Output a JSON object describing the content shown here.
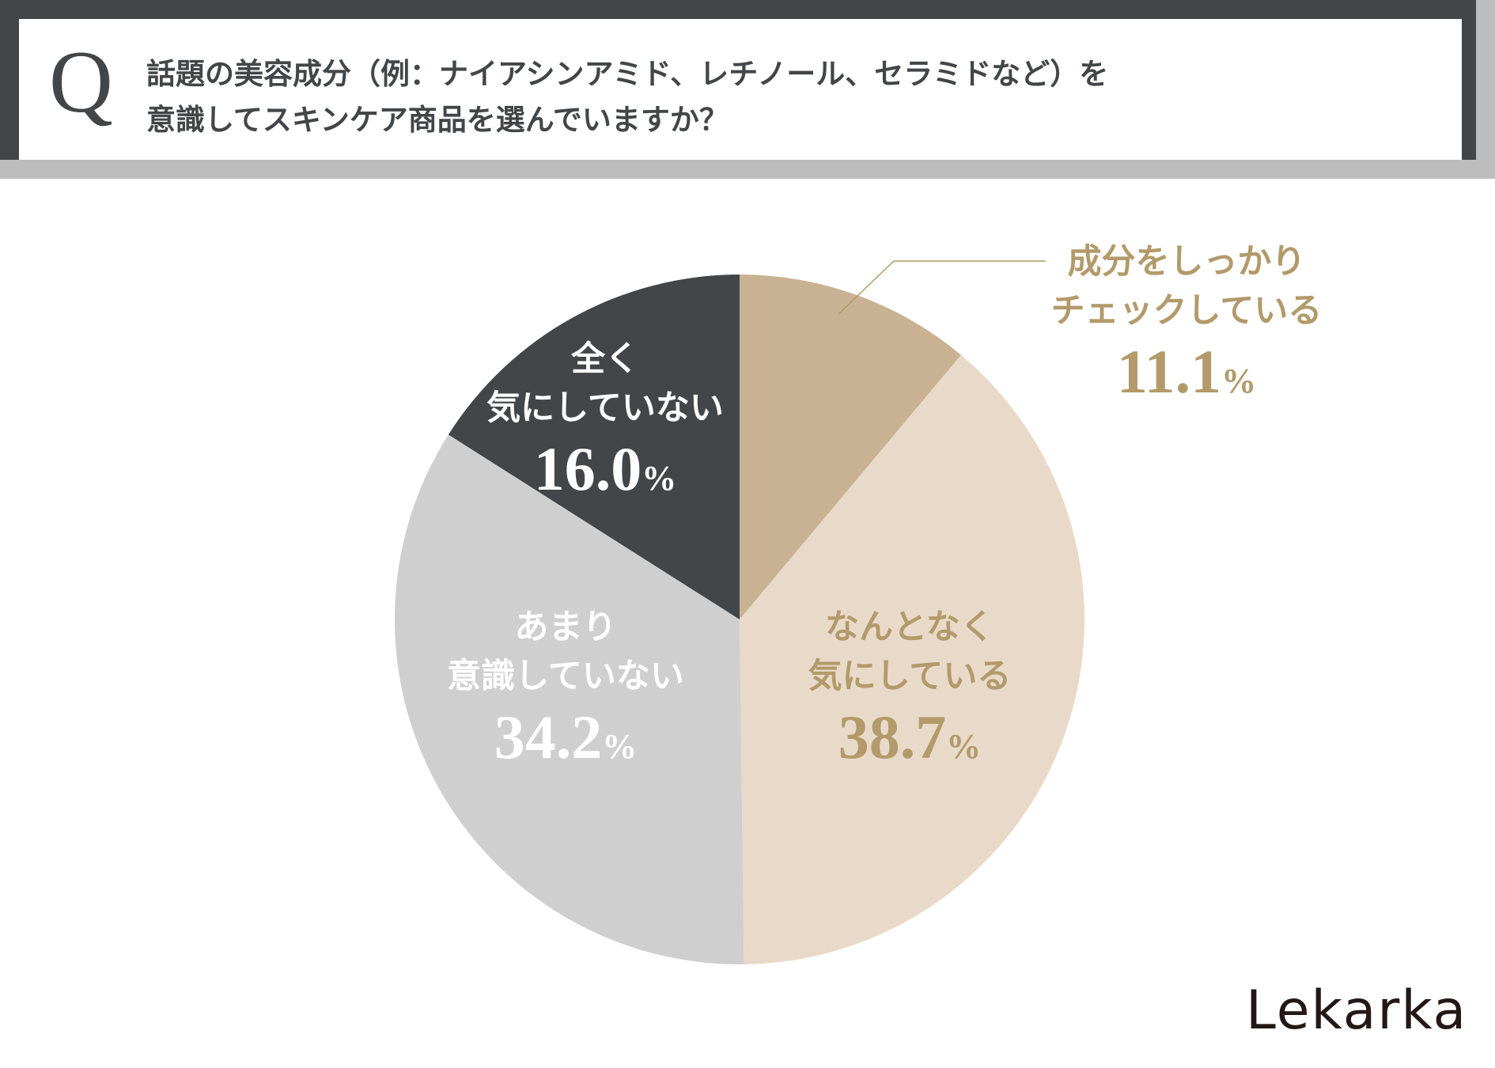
{
  "question": {
    "letter": "Q",
    "line1": "話題の美容成分（例：ナイアシンアミド、レチノール、セラミドなど）を",
    "line2": "意識してスキンケア商品を選んでいますか？"
  },
  "chart_data": {
    "type": "pie",
    "start_angle": "12 o'clock",
    "direction": "clockwise",
    "slices": [
      {
        "label_lines": [
          "成分をしっかり",
          "チェックしている"
        ],
        "value": 11.1,
        "value_text": "11.1",
        "unit": "%",
        "color": "#c8b293",
        "label_color": "#b29a6a"
      },
      {
        "label_lines": [
          "なんとなく",
          "気にしている"
        ],
        "value": 38.7,
        "value_text": "38.7",
        "unit": "%",
        "color": "#e9d9c9",
        "label_color": "#b29a6a"
      },
      {
        "label_lines": [
          "あまり",
          "意識していない"
        ],
        "value": 34.2,
        "value_text": "34.2",
        "unit": "%",
        "color": "#cfcfcf",
        "label_color": "#ffffff"
      },
      {
        "label_lines": [
          "全く",
          "気にしていない"
        ],
        "value": 16.0,
        "value_text": "16.0",
        "unit": "%",
        "color": "#434648",
        "label_color": "#ffffff"
      }
    ]
  },
  "brand": "Lekarka"
}
